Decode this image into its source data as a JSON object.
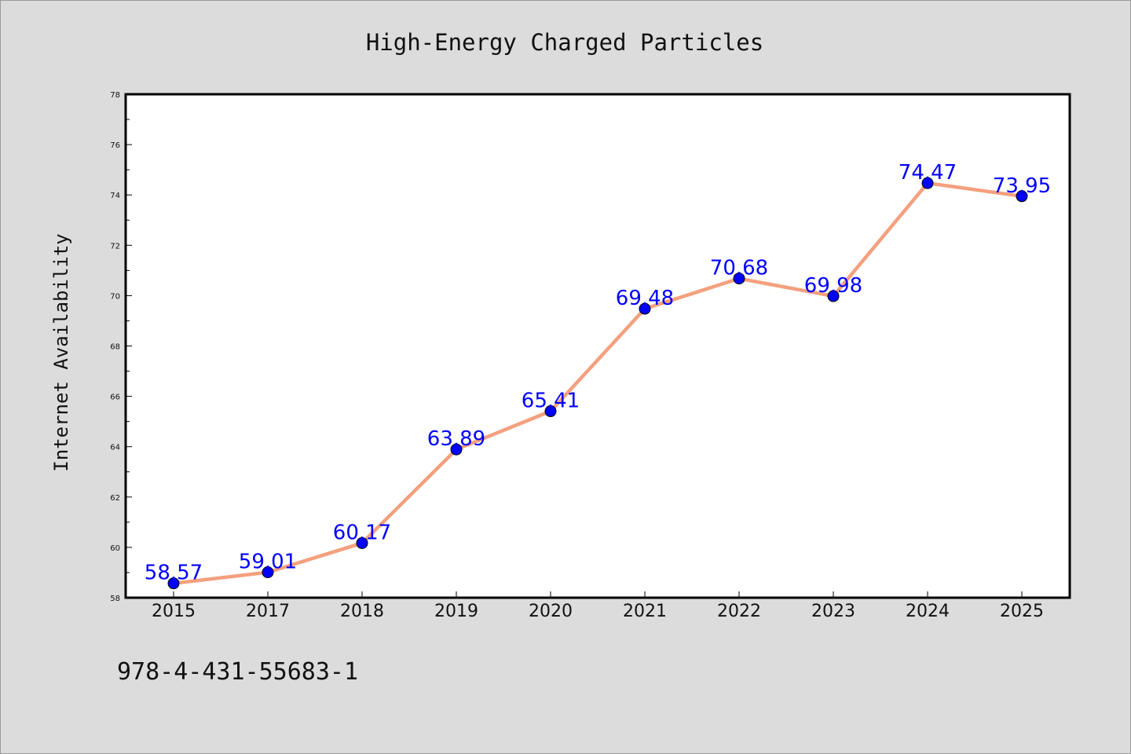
{
  "chart_data": {
    "type": "line",
    "title": "High-Energy Charged Particles",
    "xlabel": "",
    "ylabel": "Internet Availability",
    "categories": [
      "2015",
      "2017",
      "2018",
      "2019",
      "2020",
      "2021",
      "2022",
      "2023",
      "2024",
      "2025"
    ],
    "series": [
      {
        "values": [
          58.57,
          59.01,
          60.17,
          63.89,
          65.41,
          69.48,
          70.68,
          69.98,
          74.47,
          73.95
        ],
        "line_color": "#f4a07e",
        "marker_color": "#0000ff"
      }
    ],
    "data_labels": [
      "58.57",
      "59.01",
      "60.17",
      "63.89",
      "65.41",
      "69.48",
      "70.68",
      "69.98",
      "74.47",
      "73.95"
    ],
    "ylim": [
      58,
      78
    ],
    "y_ticks": [
      "58",
      "60",
      "62",
      "64",
      "66",
      "68",
      "70",
      "72",
      "74",
      "76",
      "78"
    ],
    "grid": false,
    "legend": "none",
    "background": "#dcdcdc",
    "plot_background": "#ffffff",
    "label_color": "#0000ff"
  },
  "footer": {
    "code": "978-4-431-55683-1"
  }
}
